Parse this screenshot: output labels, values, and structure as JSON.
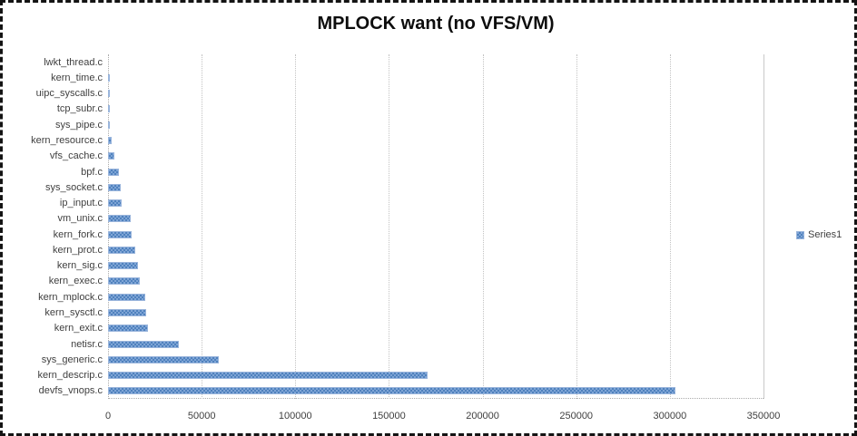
{
  "chart": {
    "title": "MPLOCK want (no VFS/VM)",
    "legend": {
      "label": "Series1",
      "marker_color": "#4f81bd"
    },
    "colors": {
      "bar_main": "#4f81bd",
      "bar_light": "#7fa5d6",
      "bar_border": "#9ab5dc",
      "gridline": "#c3c3c3",
      "axis_text": "#3f3f3f",
      "title_text": "#0d0d0d",
      "frame": "#141414"
    }
  },
  "chart_data": {
    "type": "bar",
    "orientation": "horizontal",
    "title": "MPLOCK want (no VFS/VM)",
    "categories": [
      "lwkt_thread.c",
      "kern_time.c",
      "uipc_syscalls.c",
      "tcp_subr.c",
      "sys_pipe.c",
      "kern_resource.c",
      "vfs_cache.c",
      "bpf.c",
      "sys_socket.c",
      "ip_input.c",
      "vm_unix.c",
      "kern_fork.c",
      "kern_prot.c",
      "kern_sig.c",
      "kern_exec.c",
      "kern_mplock.c",
      "kern_sysctl.c",
      "kern_exit.c",
      "netisr.c",
      "sys_generic.c",
      "kern_descrip.c",
      "devfs_vnops.c"
    ],
    "series": [
      {
        "name": "Series1",
        "values": [
          200,
          300,
          400,
          1000,
          1100,
          1800,
          3400,
          5800,
          7000,
          7200,
          12300,
          12800,
          14400,
          16200,
          17000,
          20000,
          20500,
          21200,
          38000,
          59000,
          170500,
          303000
        ]
      }
    ],
    "xlabel": "",
    "ylabel": "",
    "xlim": [
      0,
      350000
    ],
    "xticks": [
      0,
      50000,
      100000,
      150000,
      200000,
      250000,
      300000,
      350000
    ],
    "xtick_labels": [
      "0",
      "50000",
      "100000",
      "150000",
      "200000",
      "250000",
      "300000",
      "350000"
    ],
    "grid": "vertical-only",
    "legend_position": "right"
  }
}
